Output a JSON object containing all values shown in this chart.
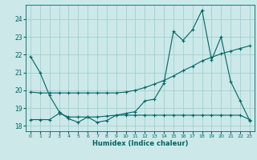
{
  "xlabel": "Humidex (Indice chaleur)",
  "bg_color": "#cce8e8",
  "grid_color": "#99cccc",
  "line_color": "#006666",
  "xlim": [
    -0.5,
    23.5
  ],
  "ylim": [
    17.7,
    24.8
  ],
  "xticks": [
    0,
    1,
    2,
    3,
    4,
    5,
    6,
    7,
    8,
    9,
    10,
    11,
    12,
    13,
    14,
    15,
    16,
    17,
    18,
    19,
    20,
    21,
    22,
    23
  ],
  "yticks": [
    18,
    19,
    20,
    21,
    22,
    23,
    24
  ],
  "line1_x": [
    0,
    1,
    2,
    3,
    4,
    5,
    6,
    7,
    8,
    9,
    10,
    11,
    12,
    13,
    14,
    15,
    16,
    17,
    18,
    19,
    20,
    21,
    22,
    23
  ],
  "line1_y": [
    21.9,
    21.0,
    19.7,
    18.8,
    18.4,
    18.2,
    18.5,
    18.2,
    18.3,
    18.6,
    18.7,
    18.8,
    19.4,
    19.5,
    20.4,
    23.3,
    22.8,
    23.4,
    24.5,
    21.7,
    23.0,
    20.5,
    19.4,
    18.3
  ],
  "line2_x": [
    0,
    1,
    2,
    3,
    4,
    5,
    6,
    7,
    8,
    9,
    10,
    11,
    12,
    13,
    14,
    15,
    16,
    17,
    18,
    19,
    20,
    21,
    22,
    23
  ],
  "line2_y": [
    19.9,
    19.85,
    19.85,
    19.85,
    19.85,
    19.85,
    19.85,
    19.85,
    19.85,
    19.85,
    19.9,
    20.0,
    20.15,
    20.35,
    20.55,
    20.8,
    21.1,
    21.35,
    21.65,
    21.85,
    22.05,
    22.2,
    22.35,
    22.5
  ],
  "line3_x": [
    0,
    1,
    2,
    3,
    4,
    5,
    6,
    7,
    8,
    9,
    10,
    11,
    12,
    13,
    14,
    15,
    16,
    17,
    18,
    19,
    20,
    21,
    22,
    23
  ],
  "line3_y": [
    18.35,
    18.35,
    18.35,
    18.7,
    18.5,
    18.5,
    18.5,
    18.5,
    18.55,
    18.6,
    18.6,
    18.6,
    18.6,
    18.6,
    18.6,
    18.6,
    18.6,
    18.6,
    18.6,
    18.6,
    18.6,
    18.6,
    18.6,
    18.35
  ]
}
